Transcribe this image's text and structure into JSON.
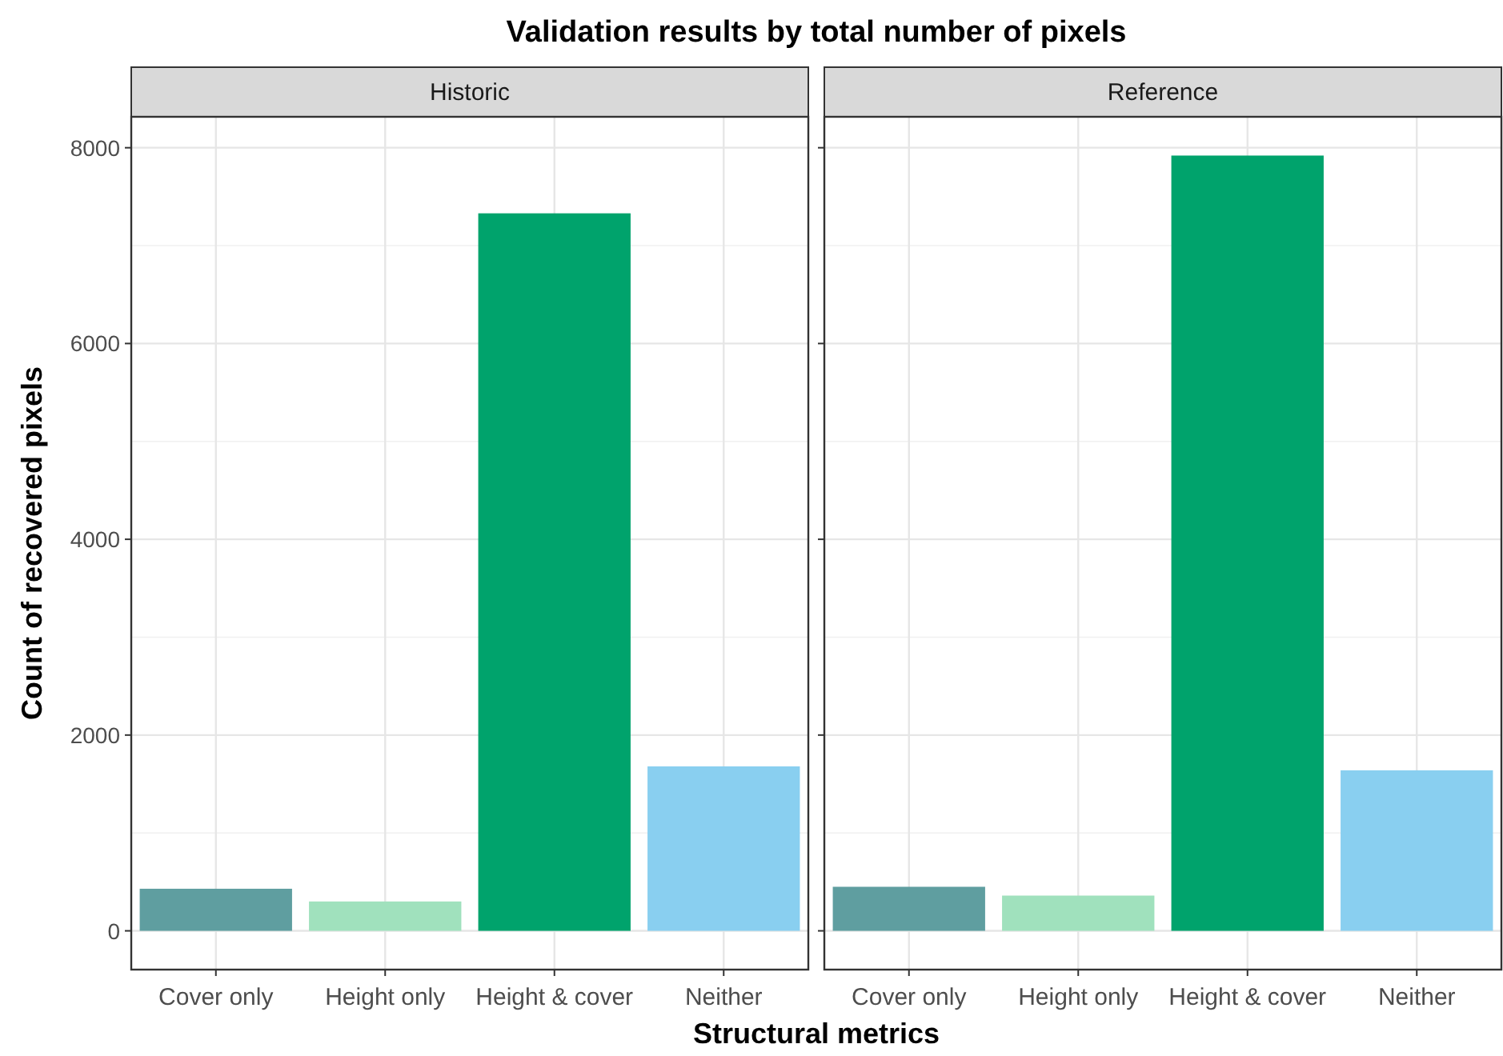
{
  "chart_data": [
    {
      "type": "bar",
      "title": "Validation results by total number of pixels",
      "subtitle": "Historic",
      "xlabel": "Structural metrics",
      "ylabel": "Count of recovered pixels",
      "categories": [
        "Cover only",
        "Height only",
        "Height & cover",
        "Neither"
      ],
      "values": [
        430,
        300,
        7330,
        1680
      ],
      "colors": [
        "#5f9ea0",
        "#a0e1bd",
        "#00a36c",
        "#89cff0"
      ],
      "ylim": [
        -396,
        8316
      ],
      "yticks": [
        0,
        2000,
        4000,
        6000,
        8000
      ],
      "grid": true
    },
    {
      "type": "bar",
      "subtitle": "Reference",
      "categories": [
        "Cover only",
        "Height only",
        "Height & cover",
        "Neither"
      ],
      "values": [
        450,
        360,
        7920,
        1640
      ],
      "colors": [
        "#5f9ea0",
        "#a0e1bd",
        "#00a36c",
        "#89cff0"
      ],
      "ylim": [
        -396,
        8316
      ],
      "yticks": [
        0,
        2000,
        4000,
        6000,
        8000
      ],
      "grid": true,
      "tick_labels": "x"
    }
  ]
}
